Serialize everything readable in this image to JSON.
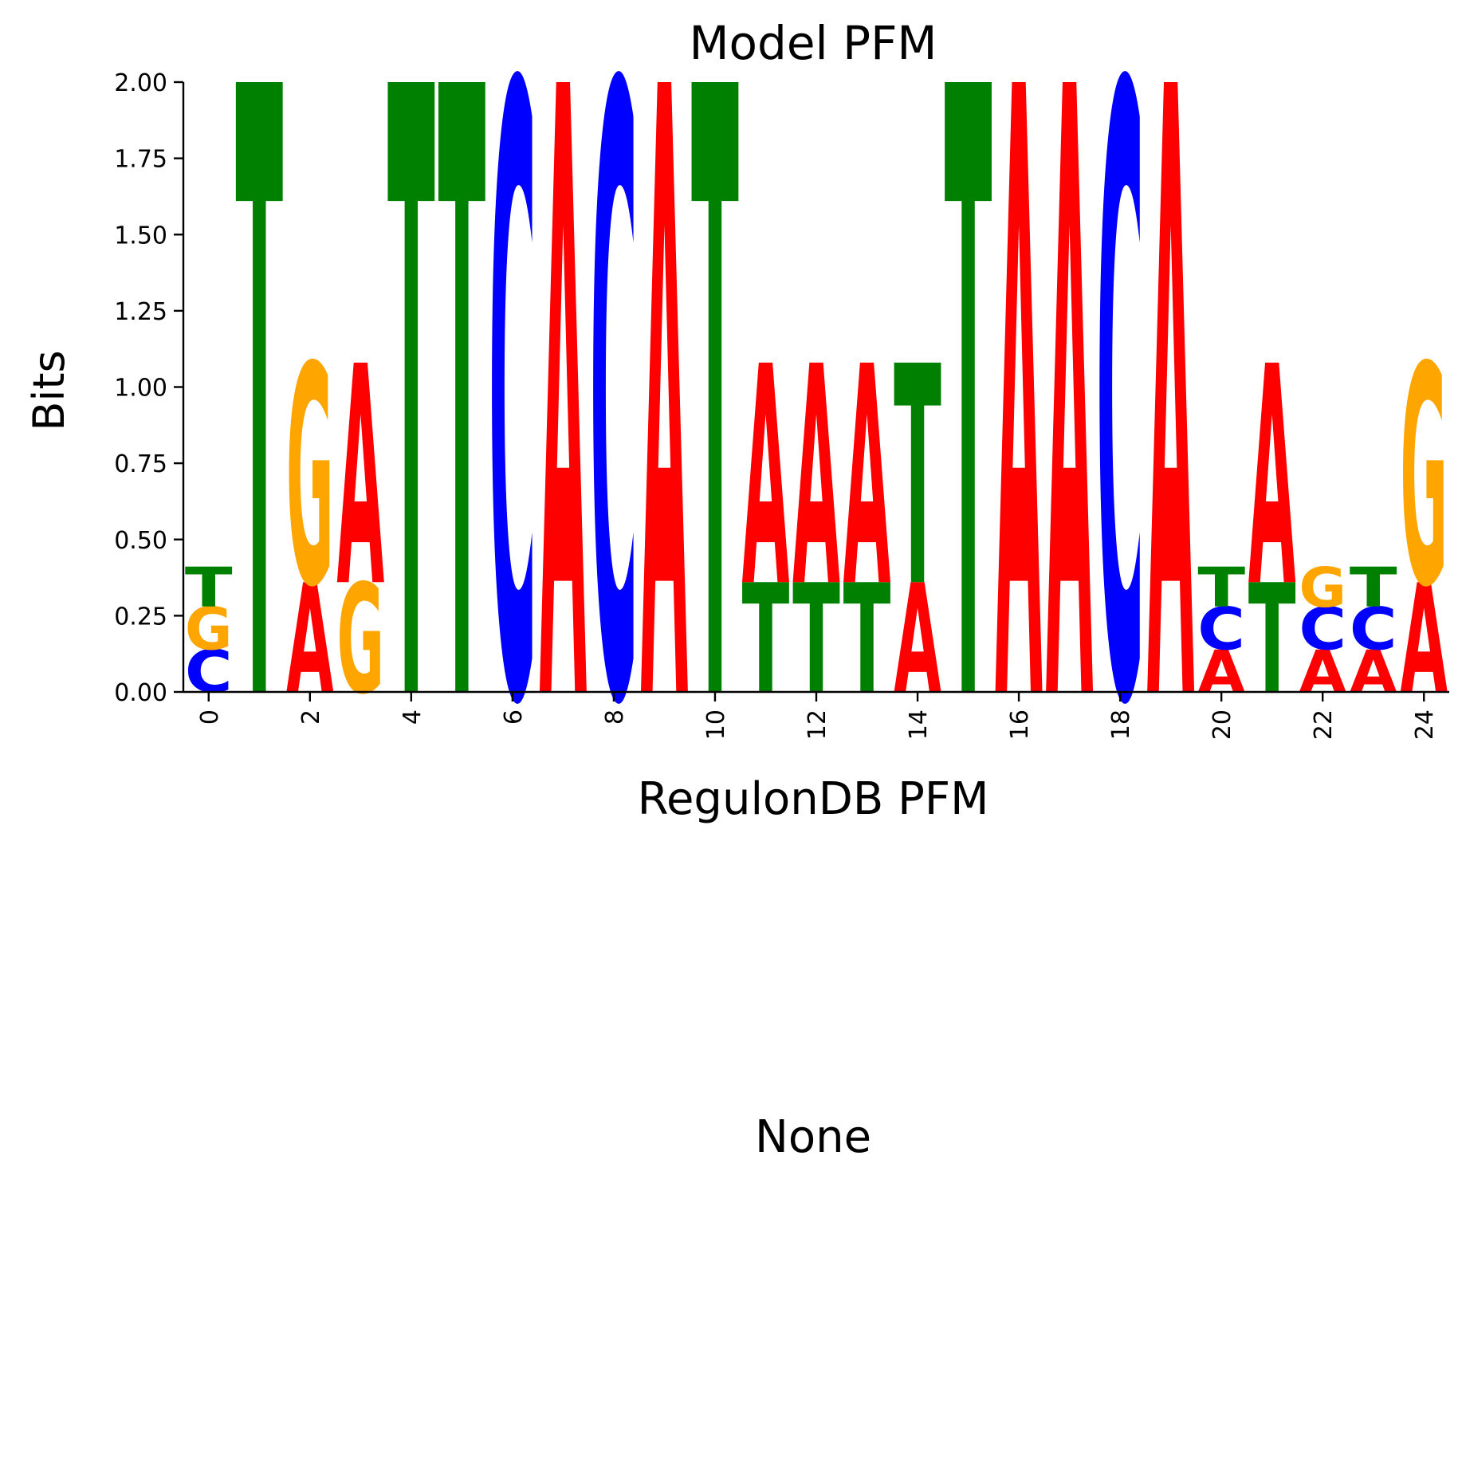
{
  "chart_data": {
    "type": "sequence-logo",
    "title": "Model PFM",
    "xlabel": "RegulonDB PFM",
    "ylabel": "Bits",
    "ylim": [
      0,
      2.0
    ],
    "xlim": [
      -0.5,
      24.5
    ],
    "y_ticks": [
      "0.00",
      "0.25",
      "0.50",
      "0.75",
      "1.00",
      "1.25",
      "1.50",
      "1.75",
      "2.00"
    ],
    "y_tick_values": [
      0,
      0.25,
      0.5,
      0.75,
      1.0,
      1.25,
      1.5,
      1.75,
      2.0
    ],
    "x_ticks": [
      "0",
      "2",
      "4",
      "6",
      "8",
      "10",
      "12",
      "14",
      "16",
      "18",
      "20",
      "22",
      "24"
    ],
    "x_tick_values": [
      0,
      2,
      4,
      6,
      8,
      10,
      12,
      14,
      16,
      18,
      20,
      22,
      24
    ],
    "colors": {
      "A": "#ff0000",
      "C": "#0000ff",
      "G": "#ffa500",
      "T": "#008000"
    },
    "positions": [
      {
        "x": 0,
        "stack": [
          {
            "b": "C",
            "h": 0.14
          },
          {
            "b": "G",
            "h": 0.14
          },
          {
            "b": "T",
            "h": 0.13
          }
        ]
      },
      {
        "x": 1,
        "stack": [
          {
            "b": "T",
            "h": 2.0
          }
        ]
      },
      {
        "x": 2,
        "stack": [
          {
            "b": "A",
            "h": 0.36
          },
          {
            "b": "G",
            "h": 0.72
          }
        ]
      },
      {
        "x": 3,
        "stack": [
          {
            "b": "G",
            "h": 0.36
          },
          {
            "b": "A",
            "h": 0.72
          }
        ]
      },
      {
        "x": 4,
        "stack": [
          {
            "b": "T",
            "h": 2.0
          }
        ]
      },
      {
        "x": 5,
        "stack": [
          {
            "b": "T",
            "h": 2.0
          }
        ]
      },
      {
        "x": 6,
        "stack": [
          {
            "b": "C",
            "h": 2.0
          }
        ]
      },
      {
        "x": 7,
        "stack": [
          {
            "b": "A",
            "h": 2.0
          }
        ]
      },
      {
        "x": 8,
        "stack": [
          {
            "b": "C",
            "h": 2.0
          }
        ]
      },
      {
        "x": 9,
        "stack": [
          {
            "b": "A",
            "h": 2.0
          }
        ]
      },
      {
        "x": 10,
        "stack": [
          {
            "b": "T",
            "h": 2.0
          }
        ]
      },
      {
        "x": 11,
        "stack": [
          {
            "b": "T",
            "h": 0.36
          },
          {
            "b": "A",
            "h": 0.72
          }
        ]
      },
      {
        "x": 12,
        "stack": [
          {
            "b": "T",
            "h": 0.36
          },
          {
            "b": "A",
            "h": 0.72
          }
        ]
      },
      {
        "x": 13,
        "stack": [
          {
            "b": "T",
            "h": 0.36
          },
          {
            "b": "A",
            "h": 0.72
          }
        ]
      },
      {
        "x": 14,
        "stack": [
          {
            "b": "A",
            "h": 0.36
          },
          {
            "b": "T",
            "h": 0.72
          }
        ]
      },
      {
        "x": 15,
        "stack": [
          {
            "b": "T",
            "h": 2.0
          }
        ]
      },
      {
        "x": 16,
        "stack": [
          {
            "b": "A",
            "h": 2.0
          }
        ]
      },
      {
        "x": 17,
        "stack": [
          {
            "b": "A",
            "h": 2.0
          }
        ]
      },
      {
        "x": 18,
        "stack": [
          {
            "b": "C",
            "h": 2.0
          }
        ]
      },
      {
        "x": 19,
        "stack": [
          {
            "b": "A",
            "h": 2.0
          }
        ]
      },
      {
        "x": 20,
        "stack": [
          {
            "b": "A",
            "h": 0.14
          },
          {
            "b": "C",
            "h": 0.14
          },
          {
            "b": "T",
            "h": 0.13
          }
        ]
      },
      {
        "x": 21,
        "stack": [
          {
            "b": "T",
            "h": 0.36
          },
          {
            "b": "A",
            "h": 0.72
          }
        ]
      },
      {
        "x": 22,
        "stack": [
          {
            "b": "A",
            "h": 0.14
          },
          {
            "b": "C",
            "h": 0.14
          },
          {
            "b": "G",
            "h": 0.13
          }
        ]
      },
      {
        "x": 23,
        "stack": [
          {
            "b": "A",
            "h": 0.14
          },
          {
            "b": "C",
            "h": 0.14
          },
          {
            "b": "T",
            "h": 0.13
          }
        ]
      },
      {
        "x": 24,
        "stack": [
          {
            "b": "A",
            "h": 0.36
          },
          {
            "b": "G",
            "h": 0.72
          }
        ]
      }
    ]
  },
  "lower_panel": {
    "label": "None"
  }
}
